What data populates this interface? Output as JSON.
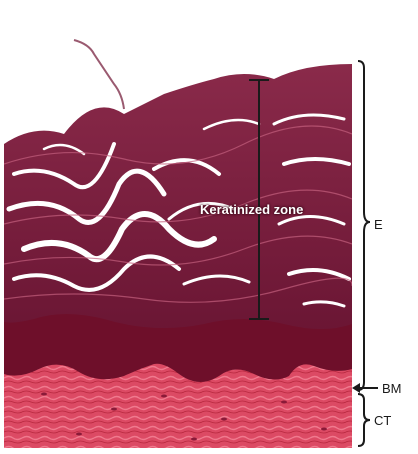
{
  "figure": {
    "keratinized_label": "Keratinized zone",
    "labels": {
      "epithelium": "E",
      "basement_membrane": "BM",
      "connective_tissue": "CT"
    },
    "colors": {
      "keratin": "#7a1e3c",
      "keratin_light": "#b54a6a",
      "spinous_layer": "#6e0f2a",
      "connective_tissue": "#d9435f",
      "background": "#ffffff",
      "annotation_line": "#1a1a1a"
    }
  }
}
